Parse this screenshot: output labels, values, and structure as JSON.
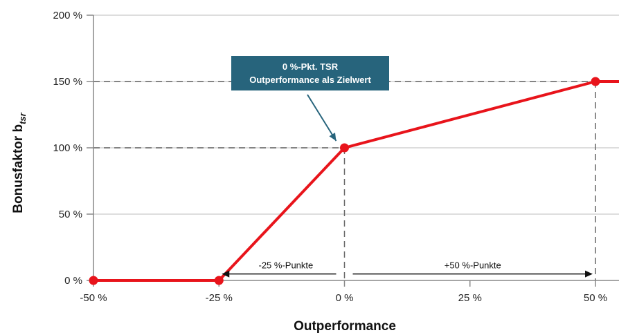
{
  "chart_data": {
    "type": "line",
    "xlabel": "Outperformance",
    "ylabel": "Bonusfaktor b",
    "ylabel_subscript": "tsr",
    "xlim": [
      -50,
      50
    ],
    "ylim": [
      0,
      200
    ],
    "x_ticks": [
      -50,
      -25,
      0,
      25,
      50
    ],
    "x_tick_labels": [
      "-50 %",
      "-25 %",
      "0 %",
      "25 %",
      "50 %"
    ],
    "y_ticks": [
      0,
      50,
      100,
      150,
      200
    ],
    "y_tick_labels": [
      "0 %",
      "50 %",
      "100 %",
      "150 %",
      "200 %"
    ],
    "grid": true,
    "series": [
      {
        "x": [
          -50,
          -25,
          0,
          50,
          55
        ],
        "y": [
          0,
          0,
          100,
          150,
          150
        ],
        "markers_x": [
          -50,
          -25,
          0,
          50
        ],
        "markers_y": [
          0,
          0,
          100,
          150
        ]
      }
    ],
    "reference_lines": [
      {
        "orientation": "horizontal",
        "value": 100,
        "x_from": -50,
        "x_to": 0
      },
      {
        "orientation": "horizontal",
        "value": 150,
        "x_from": -50,
        "x_to": 50
      },
      {
        "orientation": "vertical",
        "value": 0,
        "y_from": 0,
        "y_to": 100
      },
      {
        "orientation": "vertical",
        "value": 50,
        "y_from": 0,
        "y_to": 150
      }
    ],
    "annotations": {
      "callout": {
        "lines": [
          "0 %-Pkt. TSR",
          "Outperformance als Zielwert"
        ],
        "points_to": [
          0,
          100
        ]
      },
      "range_left": {
        "label": "-25 %-Punkte",
        "from": 0,
        "to": -25,
        "y": 8
      },
      "range_right": {
        "label": "+50 %-Punkte",
        "from": 0,
        "to": 50,
        "y": 8
      }
    }
  },
  "colors": {
    "line": "#e8141b",
    "callout_bg": "#27647c",
    "grid": "#dddddd",
    "axis": "#888888",
    "ref_dash": "#666666",
    "arrow": "#111111"
  }
}
